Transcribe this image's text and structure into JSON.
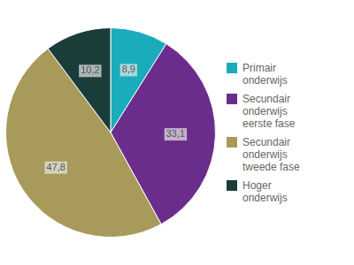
{
  "chart_data": {
    "type": "pie",
    "categories": [
      "Primair\nonderwijs",
      "Secundair\nonderwijs\neerste fase",
      "Secundair\nonderwijs\ntweede fase",
      "Hoger\nonderwijs"
    ],
    "values": [
      8.9,
      33.1,
      47.8,
      10.2
    ],
    "value_labels": [
      "8,9",
      "33,1",
      "47,8",
      "10,2"
    ],
    "colors": [
      "#1aacbb",
      "#6b2d8b",
      "#a89a5a",
      "#1a3d3a"
    ],
    "data_labels": true,
    "legend": "right"
  }
}
